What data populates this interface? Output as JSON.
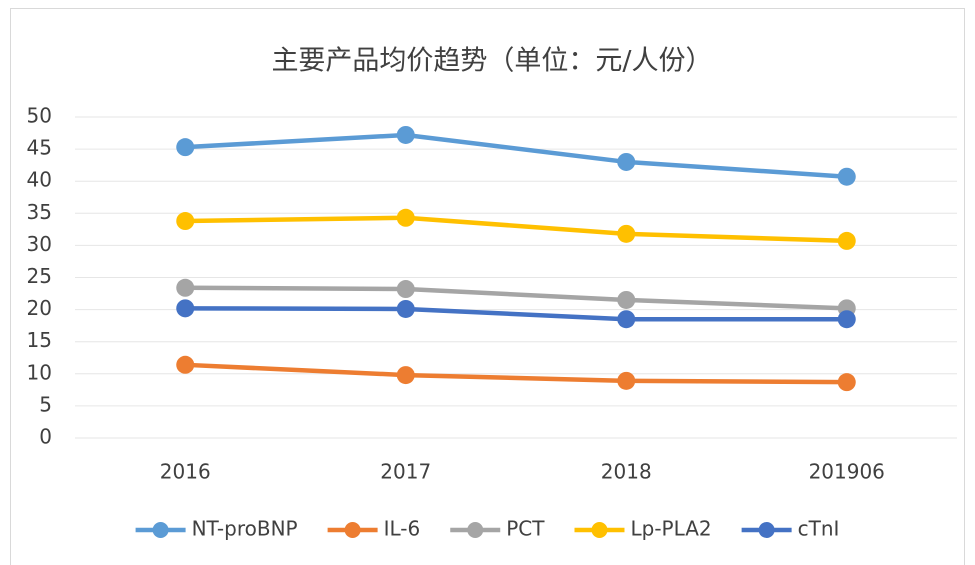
{
  "chart_data": {
    "type": "line",
    "title": "主要产品均价趋势（单位：元/人份）",
    "categories": [
      "2016",
      "2017",
      "2018",
      "201906"
    ],
    "series": [
      {
        "name": "NT-proBNP",
        "color": "#5b9bd5",
        "values": [
          45.3,
          47.2,
          43.0,
          40.7
        ]
      },
      {
        "name": "IL-6",
        "color": "#ed7d31",
        "values": [
          11.4,
          9.8,
          8.9,
          8.7
        ]
      },
      {
        "name": "PCT",
        "color": "#a5a5a5",
        "values": [
          23.4,
          23.2,
          21.5,
          20.2
        ]
      },
      {
        "name": "Lp-PLA2",
        "color": "#ffc000",
        "values": [
          33.8,
          34.3,
          31.8,
          30.7
        ]
      },
      {
        "name": "cTnI",
        "color": "#4472c4",
        "values": [
          20.2,
          20.1,
          18.5,
          18.5
        ]
      }
    ],
    "ylim": [
      0,
      50
    ],
    "yticks": [
      0,
      5,
      10,
      15,
      20,
      25,
      30,
      35,
      40,
      45,
      50
    ],
    "grid": true,
    "legend": "bottom"
  }
}
